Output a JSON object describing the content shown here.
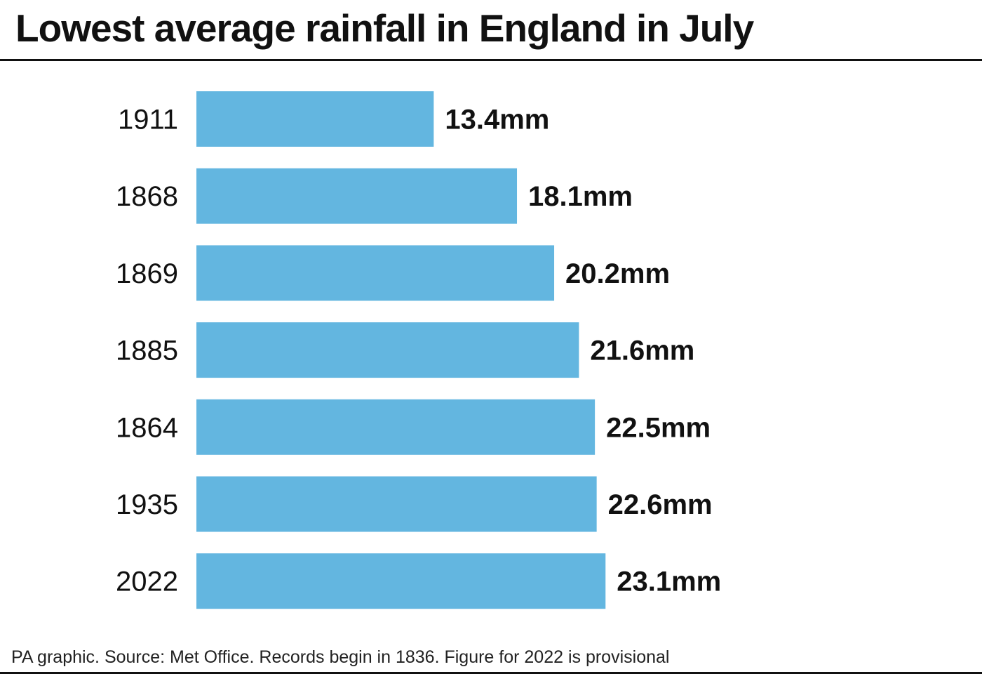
{
  "header": {
    "title": "Lowest average rainfall in England in July"
  },
  "footer": {
    "source": "PA graphic. Source: Met Office. Records begin in 1836. Figure for 2022 is provisional"
  },
  "colors": {
    "bar": "#63b6e0",
    "text": "#111111",
    "rule": "#111111"
  },
  "chart_data": {
    "type": "bar",
    "orientation": "horizontal",
    "categories": [
      "1911",
      "1868",
      "1869",
      "1885",
      "1864",
      "1935",
      "2022"
    ],
    "values": [
      13.4,
      18.1,
      20.2,
      21.6,
      22.5,
      22.6,
      23.1
    ],
    "value_labels": [
      "13.4mm",
      "18.1mm",
      "20.2mm",
      "21.6mm",
      "22.5mm",
      "22.6mm",
      "23.1mm"
    ],
    "unit": "mm",
    "grid": false,
    "legend": "none"
  }
}
